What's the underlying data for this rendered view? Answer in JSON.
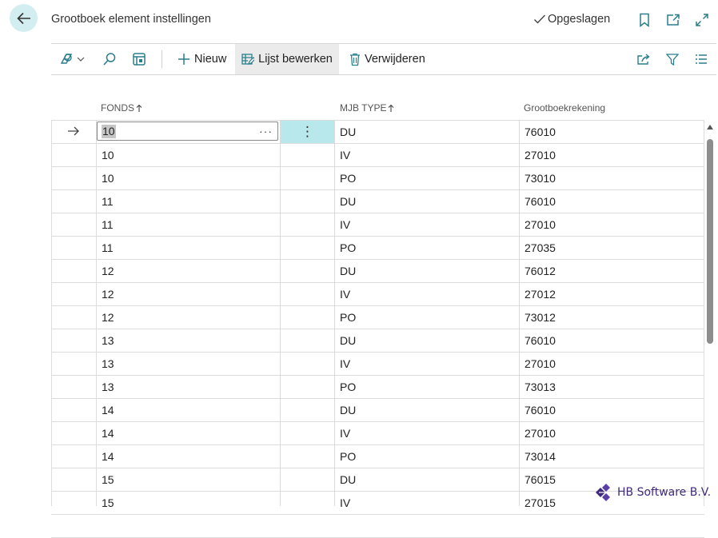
{
  "header": {
    "title": "Grootboek element instellingen",
    "saved_label": "Opgeslagen",
    "saved_icon": "check-icon",
    "icons": [
      "bookmark-icon",
      "open-in-new-icon",
      "expand-icon"
    ]
  },
  "toolbar": {
    "view_icon": "view-switch-icon",
    "search_icon": "search-icon",
    "layout_icon": "layout-icon",
    "new_label": "Nieuw",
    "edit_list_label": "Lijst bewerken",
    "delete_label": "Verwijderen",
    "share_icon": "share-icon",
    "filter_icon": "filter-icon",
    "list_icon": "list-icon"
  },
  "table": {
    "columns": [
      {
        "label": "FONDS",
        "sorted": "asc"
      },
      {
        "label": "MJB TYPE",
        "sorted": "asc"
      },
      {
        "label": "Grootboekrekening",
        "sorted": null
      }
    ],
    "rows": [
      {
        "fonds": "10",
        "type": "DU",
        "rek": "76010"
      },
      {
        "fonds": "10",
        "type": "IV",
        "rek": "27010"
      },
      {
        "fonds": "10",
        "type": "PO",
        "rek": "73010"
      },
      {
        "fonds": "11",
        "type": "DU",
        "rek": "76010"
      },
      {
        "fonds": "11",
        "type": "IV",
        "rek": "27010"
      },
      {
        "fonds": "11",
        "type": "PO",
        "rek": "27035"
      },
      {
        "fonds": "12",
        "type": "DU",
        "rek": "76012"
      },
      {
        "fonds": "12",
        "type": "IV",
        "rek": "27012"
      },
      {
        "fonds": "12",
        "type": "PO",
        "rek": "73012"
      },
      {
        "fonds": "13",
        "type": "DU",
        "rek": "76010"
      },
      {
        "fonds": "13",
        "type": "IV",
        "rek": "27010"
      },
      {
        "fonds": "13",
        "type": "PO",
        "rek": "73013"
      },
      {
        "fonds": "14",
        "type": "DU",
        "rek": "76010"
      },
      {
        "fonds": "14",
        "type": "IV",
        "rek": "27010"
      },
      {
        "fonds": "14",
        "type": "PO",
        "rek": "73014"
      },
      {
        "fonds": "15",
        "type": "DU",
        "rek": "76015"
      },
      {
        "fonds": "15",
        "type": "IV",
        "rek": "27015"
      },
      {
        "fonds": "",
        "type": "",
        "rek": ""
      }
    ],
    "selected_row": 0,
    "selected_actions_label": "···",
    "row_menu_label": "⋮"
  },
  "brand": {
    "text": "HB Software B.V.",
    "icon": "hb-logo-icon"
  },
  "colors": {
    "accent": "#d3eef1",
    "row_menu": "#b8e8ec",
    "brand": "#3e2a7a"
  }
}
